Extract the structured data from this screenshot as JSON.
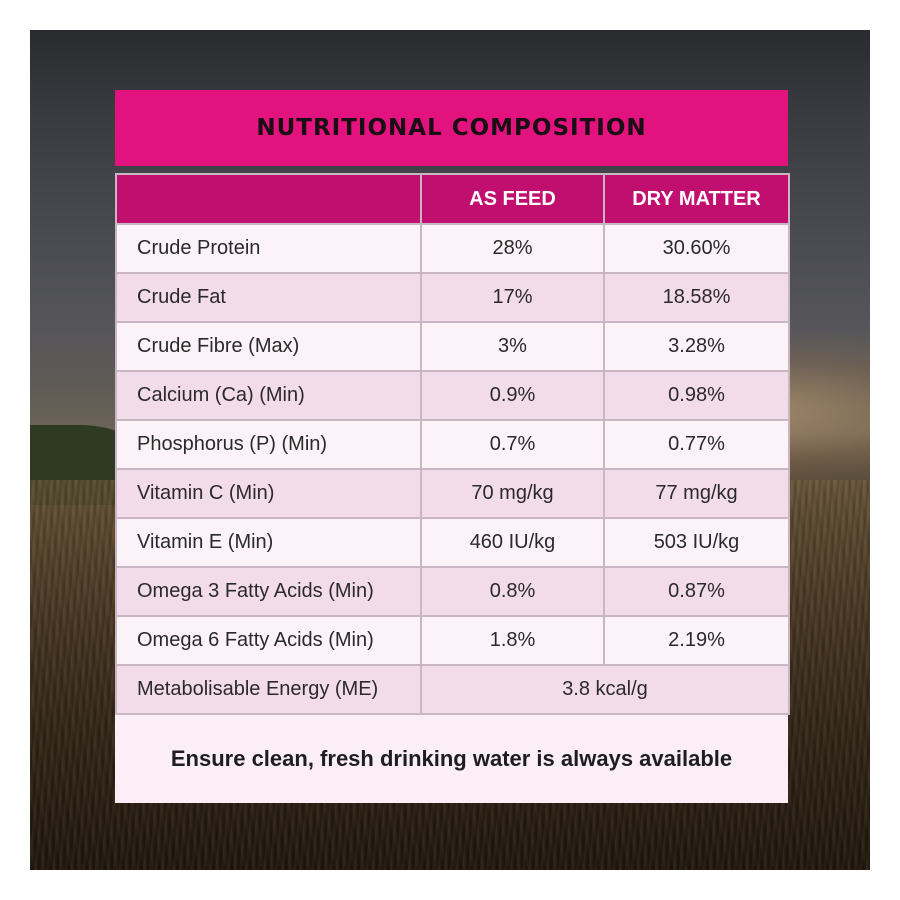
{
  "title": "NUTRITIONAL COMPOSITION",
  "headers": {
    "blank": "",
    "as_feed": "AS FEED",
    "dry_matter": "DRY MATTER"
  },
  "rows": [
    {
      "label": "Crude Protein",
      "as_feed": "28%",
      "dry_matter": "30.60%"
    },
    {
      "label": "Crude Fat",
      "as_feed": "17%",
      "dry_matter": "18.58%"
    },
    {
      "label": "Crude Fibre (Max)",
      "as_feed": "3%",
      "dry_matter": "3.28%"
    },
    {
      "label": "Calcium (Ca) (Min)",
      "as_feed": "0.9%",
      "dry_matter": "0.98%"
    },
    {
      "label": "Phosphorus (P) (Min)",
      "as_feed": "0.7%",
      "dry_matter": "0.77%"
    },
    {
      "label": "Vitamin C (Min)",
      "as_feed": "70 mg/kg",
      "dry_matter": "77 mg/kg"
    },
    {
      "label": "Vitamin E (Min)",
      "as_feed": "460 IU/kg",
      "dry_matter": "503 IU/kg"
    },
    {
      "label": "Omega 3 Fatty Acids (Min)",
      "as_feed": "0.8%",
      "dry_matter": "0.87%"
    },
    {
      "label": "Omega 6 Fatty Acids (Min)",
      "as_feed": "1.8%",
      "dry_matter": "2.19%"
    }
  ],
  "energy": {
    "label": "Metabolisable Energy (ME)",
    "value": "3.8 kcal/g"
  },
  "footer": "Ensure clean, fresh drinking water is always available",
  "colors": {
    "title_bar": "#e2127f",
    "header_row": "#c00f6e",
    "row_light": "#fcf3f8",
    "row_dark": "#f3dcea"
  }
}
